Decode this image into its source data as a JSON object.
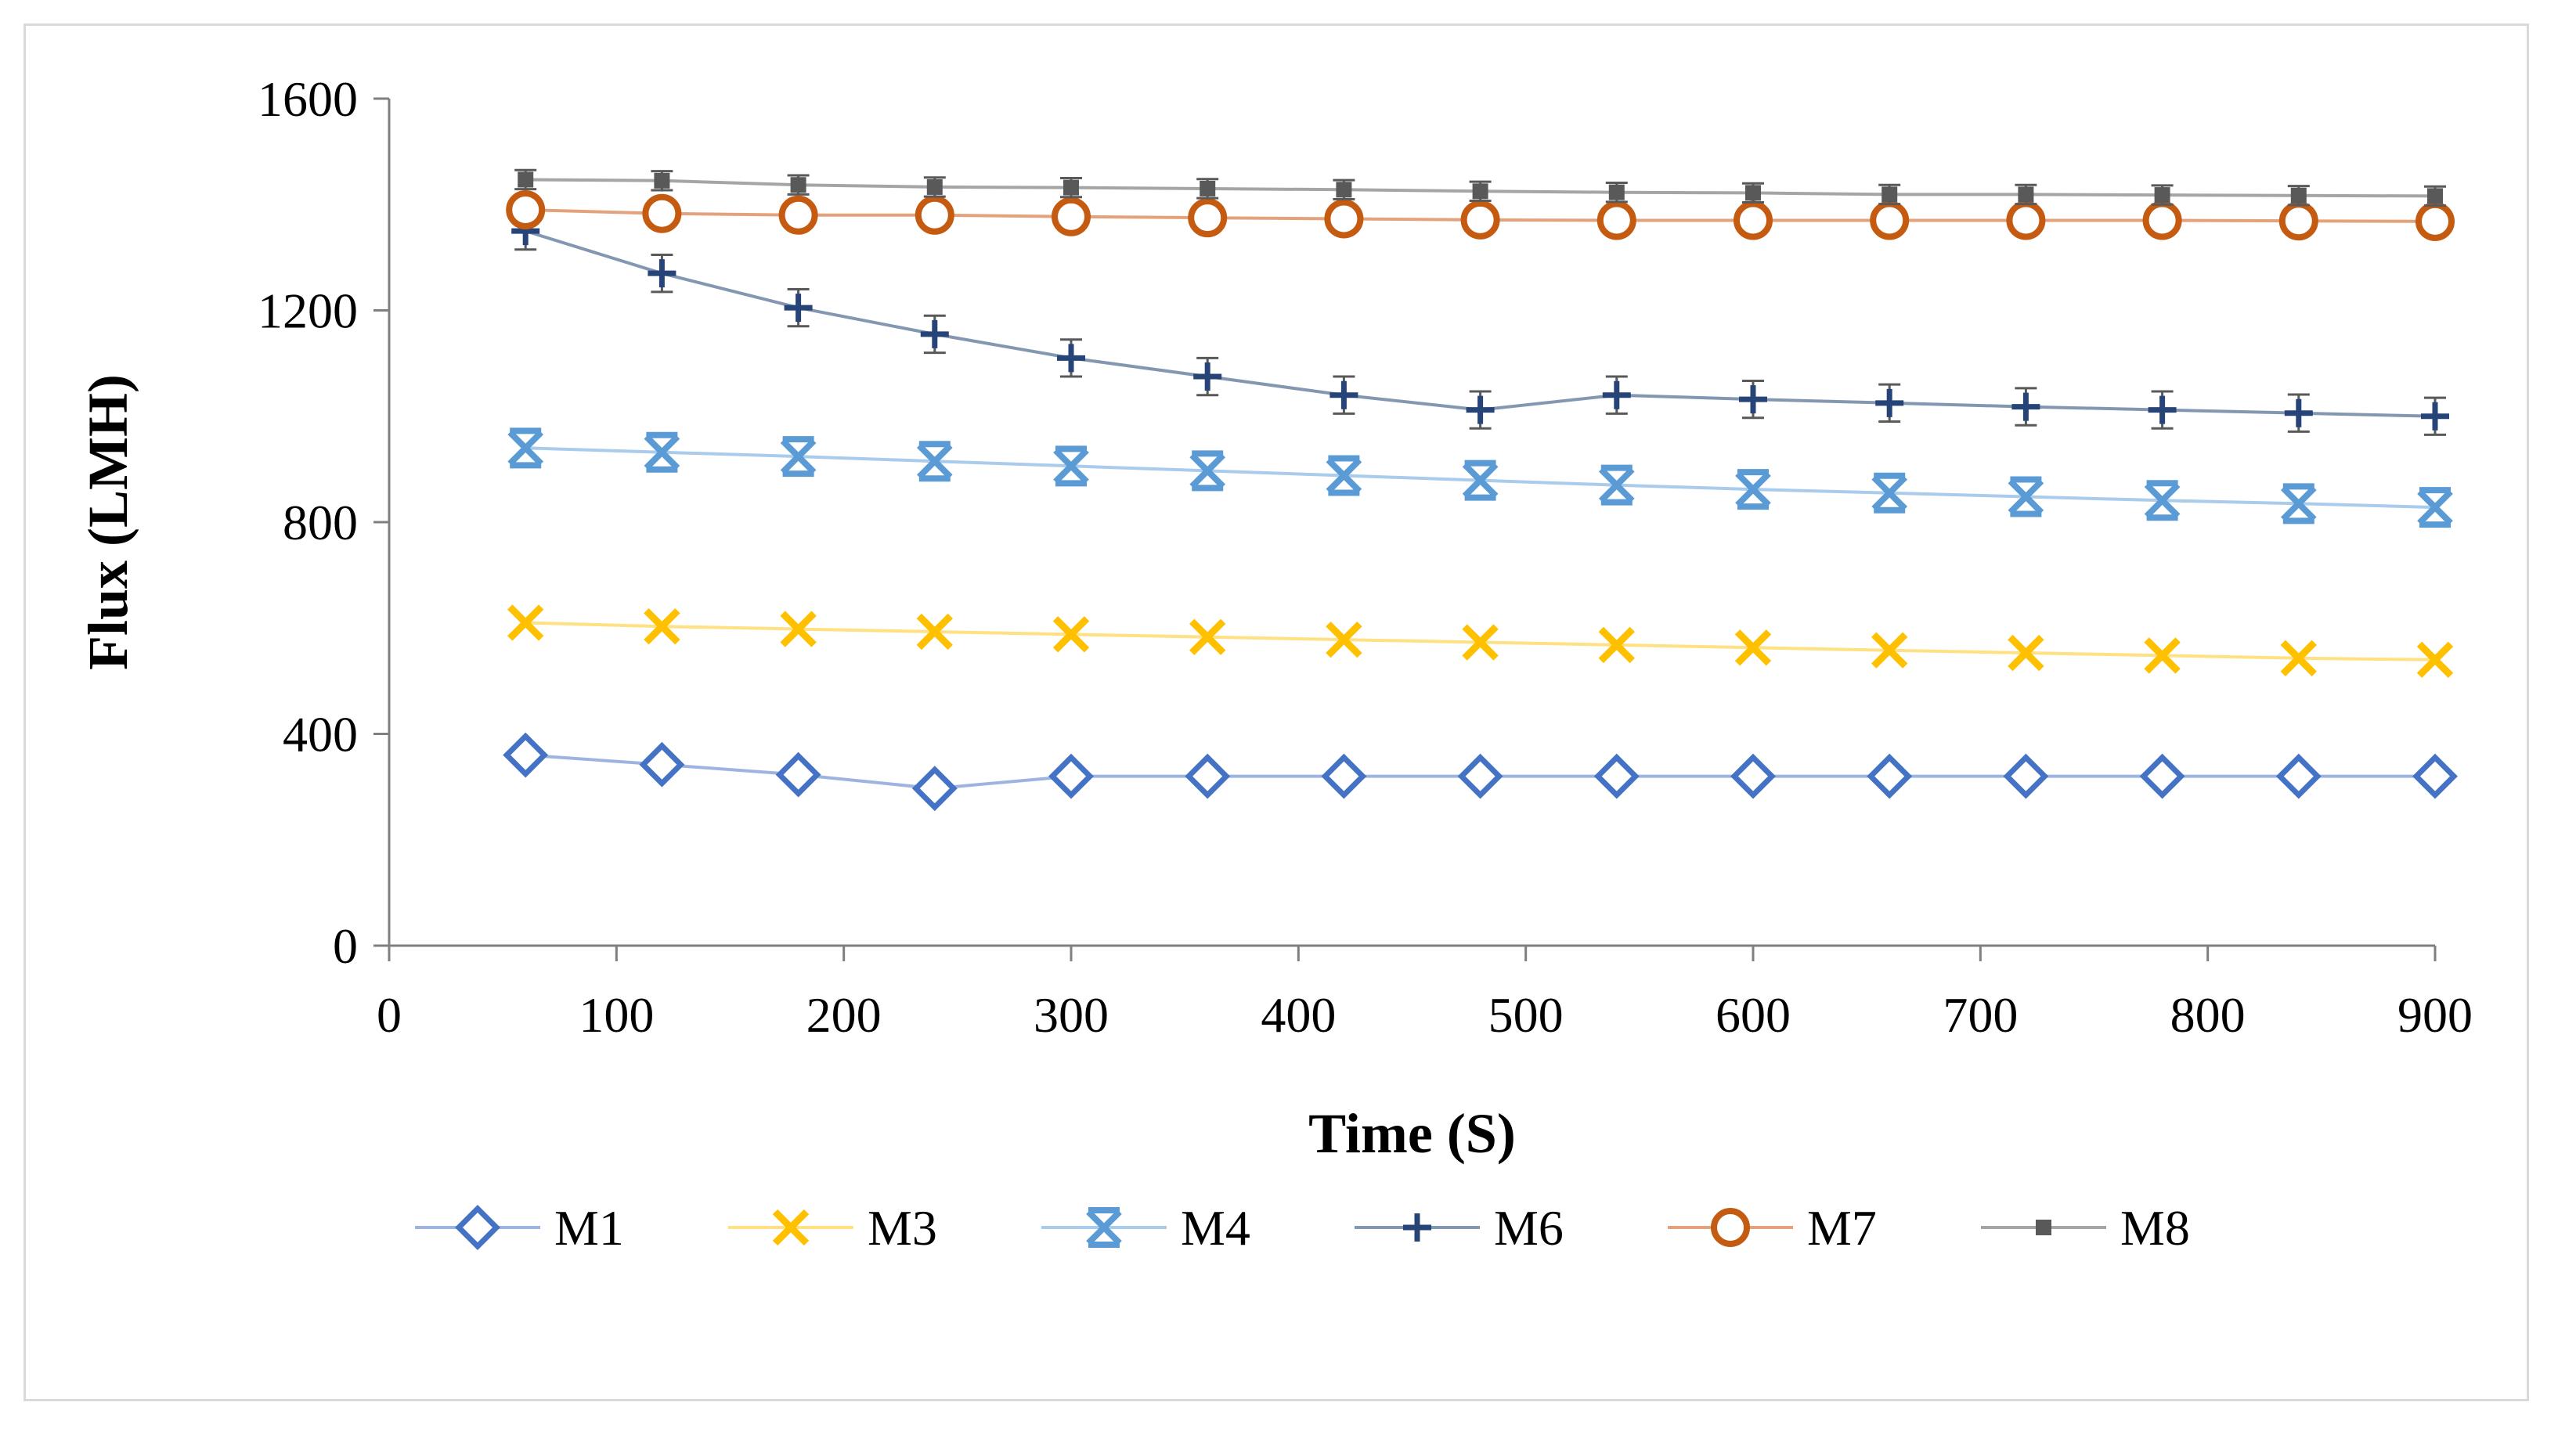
{
  "chart_data": {
    "type": "line",
    "title": "",
    "xlabel": "Time (S)",
    "ylabel": "Flux (LMH)",
    "xlim": [
      0,
      900
    ],
    "ylim": [
      0,
      1600
    ],
    "xticks": [
      0,
      100,
      200,
      300,
      400,
      500,
      600,
      700,
      800,
      900
    ],
    "yticks": [
      0,
      400,
      800,
      1200,
      1600
    ],
    "grid": false,
    "legend_position": "bottom",
    "x": [
      60,
      120,
      180,
      240,
      300,
      360,
      420,
      480,
      540,
      600,
      660,
      720,
      780,
      840,
      900
    ],
    "series": [
      {
        "name": "M1",
        "marker": "diamond",
        "line_color": "#9db4e0",
        "marker_color": "#4472c4",
        "values": [
          360,
          342,
          323,
          297,
          320,
          320,
          320,
          320,
          320,
          320,
          320,
          320,
          320,
          320,
          320
        ]
      },
      {
        "name": "M3",
        "marker": "x",
        "line_color": "#ffe083",
        "marker_color": "#ffc000",
        "values": [
          610,
          603,
          598,
          593,
          588,
          583,
          578,
          573,
          568,
          563,
          558,
          553,
          548,
          543,
          540
        ]
      },
      {
        "name": "M4",
        "marker": "star",
        "line_color": "#a9cbec",
        "marker_color": "#5b9bd5",
        "values": [
          940,
          932,
          924,
          915,
          906,
          897,
          888,
          879,
          870,
          862,
          855,
          848,
          841,
          835,
          828
        ]
      },
      {
        "name": "M6",
        "marker": "plus",
        "line_color": "#8497b0",
        "marker_color": "#264478",
        "error": 35,
        "values": [
          1350,
          1270,
          1205,
          1155,
          1110,
          1075,
          1040,
          1012,
          1040,
          1032,
          1025,
          1018,
          1012,
          1006,
          1000
        ]
      },
      {
        "name": "M7",
        "marker": "circle",
        "line_color": "#e4a27c",
        "marker_color": "#c55a11",
        "values": [
          1390,
          1383,
          1380,
          1380,
          1377,
          1375,
          1373,
          1371,
          1370,
          1370,
          1370,
          1370,
          1370,
          1369,
          1368
        ]
      },
      {
        "name": "M8",
        "marker": "square",
        "line_color": "#a5a5a5",
        "marker_color": "#595959",
        "error": 18,
        "values": [
          1447,
          1445,
          1437,
          1433,
          1432,
          1430,
          1428,
          1425,
          1423,
          1422,
          1419,
          1419,
          1418,
          1417,
          1416
        ]
      }
    ]
  }
}
